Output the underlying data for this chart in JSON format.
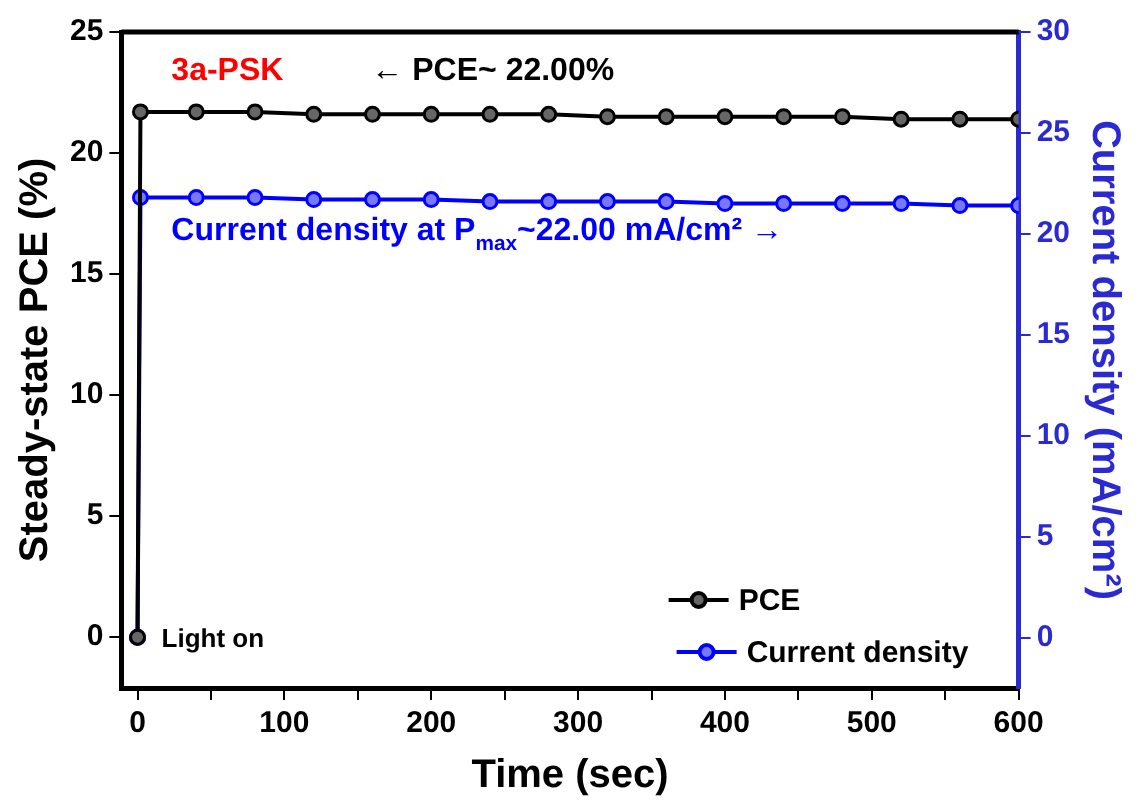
{
  "chart_data": {
    "type": "line",
    "xlabel": "Time (sec)",
    "ylabel": "Steady-state PCE (%)",
    "y2label": "Current density (mA/cm²)",
    "xlim": [
      -11,
      600
    ],
    "xticks": [
      0,
      {
        "value": 50,
        "label": null
      },
      100,
      {
        "value": 150,
        "label": null
      },
      200,
      {
        "value": 250,
        "label": null
      },
      300,
      {
        "value": 350,
        "label": null
      },
      400,
      {
        "value": 450,
        "label": null
      },
      500,
      {
        "value": 550,
        "label": null
      },
      600
    ],
    "ylim": [
      -2.1,
      25
    ],
    "yticks": [
      0,
      5,
      10,
      15,
      20,
      25
    ],
    "y2lim": [
      -2.5,
      30
    ],
    "y2ticks": [
      0,
      5,
      10,
      15,
      20,
      25,
      30
    ],
    "marker": "circle",
    "line_style": "solid",
    "grid": false,
    "legend": "bottom right",
    "series": [
      {
        "name": "PCE",
        "color": "#000000",
        "x": [
          0,
          2,
          40,
          80,
          120,
          160,
          200,
          240,
          280,
          320,
          360,
          400,
          440,
          480,
          520,
          560,
          600
        ],
        "values": [
          0,
          21.7,
          21.7,
          21.7,
          21.6,
          21.6,
          21.6,
          21.6,
          21.6,
          21.5,
          21.5,
          21.5,
          21.5,
          21.5,
          21.4,
          21.4,
          21.4
        ]
      },
      {
        "name": "Current density",
        "color": "#0000ff",
        "axis": "y2",
        "x": [
          0,
          2,
          40,
          80,
          120,
          160,
          200,
          240,
          280,
          320,
          360,
          400,
          440,
          480,
          520,
          560,
          600
        ],
        "values": [
          0,
          21.8,
          21.8,
          21.8,
          21.7,
          21.7,
          21.7,
          21.6,
          21.6,
          21.6,
          21.6,
          21.5,
          21.5,
          21.5,
          21.5,
          21.4,
          21.4
        ]
      }
    ],
    "annotations": [
      "3a-PSK",
      "← PCE~ 22.00%",
      "Current density at P$_{max}$~22.00 mA/cm² →",
      {
        "text": "Light on",
        "x": 0,
        "y": 0
      }
    ]
  }
}
